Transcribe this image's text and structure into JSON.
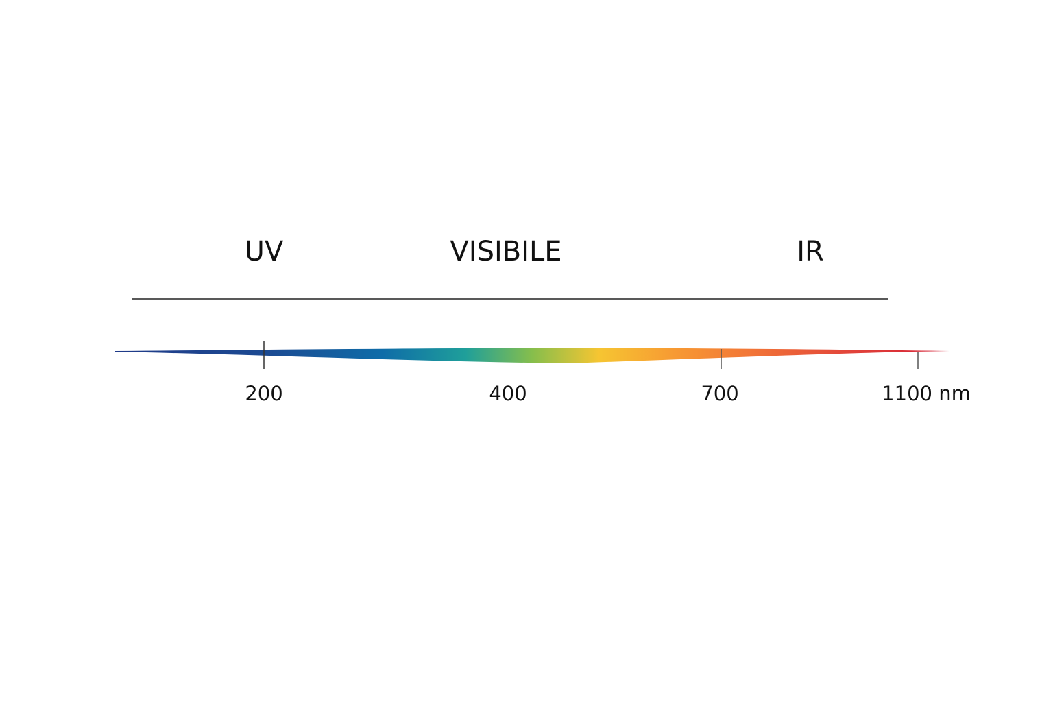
{
  "regions": [
    {
      "label": "UV"
    },
    {
      "label": "VISIBILE"
    },
    {
      "label": "IR"
    }
  ],
  "ticks": [
    {
      "label": "200"
    },
    {
      "label": "400"
    },
    {
      "label": "700"
    },
    {
      "label": "1100 nm"
    }
  ]
}
